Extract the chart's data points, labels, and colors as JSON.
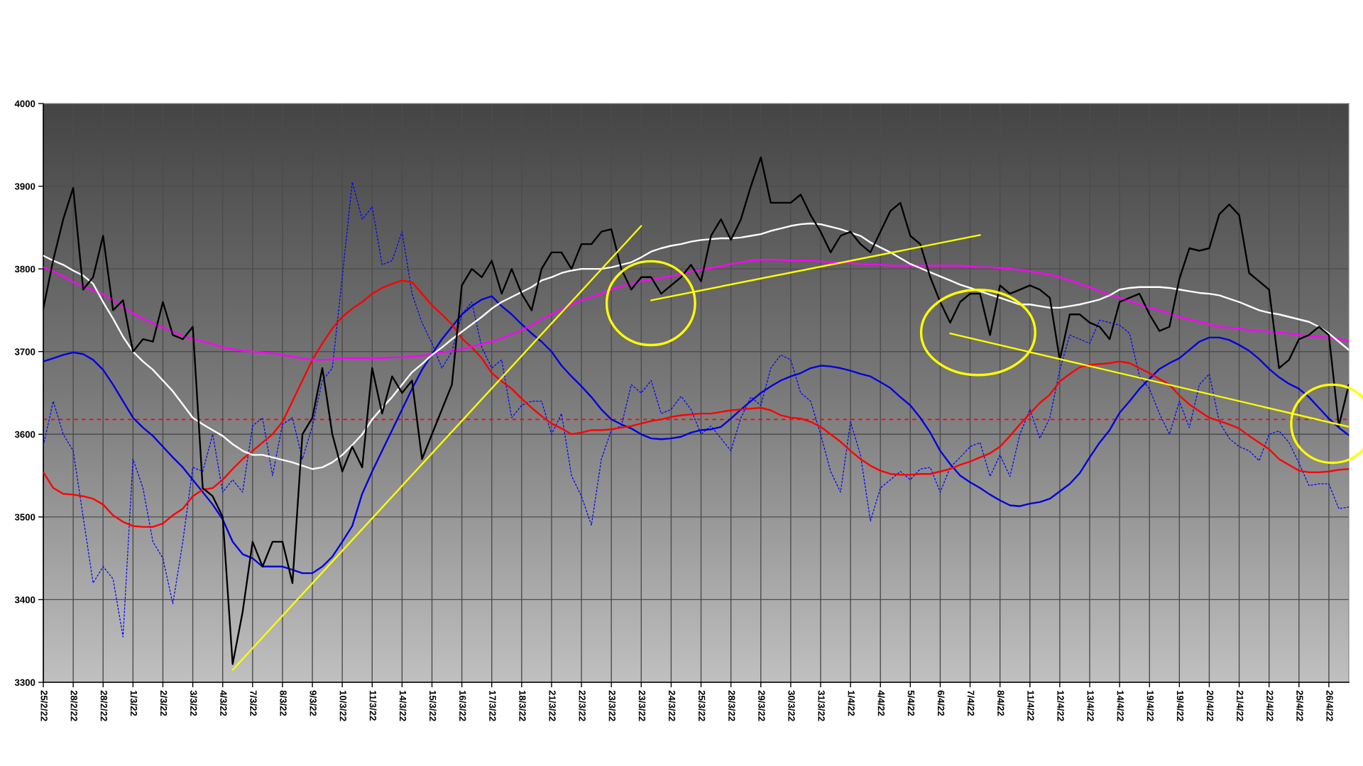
{
  "chart_data": {
    "type": "line",
    "categories": [
      "25/2/22",
      null,
      null,
      "28/2/22",
      null,
      null,
      "28/2/22",
      null,
      null,
      "1/3/22",
      null,
      null,
      "2/3/22",
      null,
      null,
      "3/3/22",
      null,
      null,
      "4/3/22",
      null,
      null,
      "7/3/22",
      null,
      null,
      "8/3/22",
      null,
      null,
      "9/3/22",
      null,
      null,
      "10/3/22",
      null,
      null,
      "11/3/22",
      null,
      null,
      "14/3/22",
      null,
      null,
      "15/3/22",
      null,
      null,
      "16/3/22",
      null,
      null,
      "17/3/22",
      null,
      null,
      "18/3/22",
      null,
      null,
      "21/3/22",
      null,
      null,
      "22/3/22",
      null,
      null,
      "23/3/22",
      null,
      null,
      "23/3/22",
      null,
      null,
      "24/3/22",
      null,
      null,
      "25/3/22",
      null,
      null,
      "28/3/22",
      null,
      null,
      "29/3/22",
      null,
      null,
      "30/3/22",
      null,
      null,
      "31/3/22",
      null,
      null,
      "1/4/22",
      null,
      null,
      "4/4/22",
      null,
      null,
      "5/4/22",
      null,
      null,
      "6/4/22",
      null,
      null,
      "7/4/22",
      null,
      null,
      "8/4/22",
      null,
      null,
      "11/4/22",
      null,
      null,
      "12/4/22",
      null,
      null,
      "13/4/22",
      null,
      null,
      "14/4/22",
      null,
      null,
      "19/4/22",
      null,
      null,
      "19/4/22",
      null,
      null,
      "20/4/22",
      null,
      null,
      "21/4/22",
      null,
      null,
      "22/4/22",
      null,
      null,
      "25/4/22",
      null,
      null,
      "26/4/22",
      null,
      null
    ],
    "series": [
      {
        "color": "#0000ff",
        "line_style": "dotted",
        "values": [
          3586,
          3640,
          3600,
          3580,
          3500,
          3420,
          3440,
          3425,
          3355,
          3570,
          3535,
          3470,
          3450,
          3395,
          3470,
          3560,
          3555,
          3600,
          3530,
          3545,
          3530,
          3610,
          3620,
          3550,
          3612,
          3620,
          3570,
          3610,
          3665,
          3680,
          3790,
          3905,
          3860,
          3875,
          3805,
          3810,
          3845,
          3770,
          3735,
          3710,
          3680,
          3700,
          3745,
          3760,
          3705,
          3680,
          3690,
          3620,
          3635,
          3640,
          3640,
          3600,
          3625,
          3550,
          3525,
          3490,
          3570,
          3605,
          3610,
          3660,
          3650,
          3665,
          3625,
          3630,
          3646,
          3630,
          3600,
          3610,
          3595,
          3580,
          3620,
          3645,
          3635,
          3680,
          3696,
          3690,
          3650,
          3640,
          3600,
          3555,
          3530,
          3615,
          3575,
          3495,
          3535,
          3545,
          3555,
          3545,
          3558,
          3560,
          3530,
          3560,
          3572,
          3585,
          3590,
          3549,
          3575,
          3549,
          3600,
          3630,
          3595,
          3620,
          3678,
          3720,
          3715,
          3710,
          3738,
          3735,
          3732,
          3722,
          3670,
          3655,
          3625,
          3600,
          3640,
          3608,
          3660,
          3673,
          3615,
          3595,
          3585,
          3580,
          3568,
          3600,
          3604,
          3590,
          3565,
          3538,
          3540,
          3540,
          3510,
          3512
        ]
      },
      {
        "color": "#0000dd",
        "values": [
          3688,
          3692,
          3696,
          3699,
          3697,
          3690,
          3678,
          3660,
          3640,
          3620,
          3608,
          3598,
          3585,
          3572,
          3560,
          3545,
          3530,
          3515,
          3497,
          3470,
          3455,
          3450,
          3440,
          3440,
          3440,
          3436,
          3432,
          3432,
          3440,
          3452,
          3470,
          3489,
          3528,
          3555,
          3580,
          3605,
          3630,
          3655,
          3678,
          3697,
          3715,
          3730,
          3745,
          3755,
          3763,
          3767,
          3755,
          3745,
          3733,
          3722,
          3712,
          3700,
          3683,
          3670,
          3658,
          3645,
          3630,
          3618,
          3612,
          3607,
          3600,
          3595,
          3594,
          3595,
          3597,
          3602,
          3605,
          3606,
          3609,
          3619,
          3630,
          3640,
          3650,
          3658,
          3665,
          3670,
          3674,
          3680,
          3683,
          3682,
          3680,
          3677,
          3673,
          3670,
          3663,
          3656,
          3645,
          3635,
          3620,
          3602,
          3580,
          3564,
          3550,
          3542,
          3535,
          3527,
          3520,
          3514,
          3513,
          3516,
          3518,
          3522,
          3531,
          3540,
          3553,
          3572,
          3590,
          3605,
          3626,
          3640,
          3655,
          3667,
          3679,
          3686,
          3692,
          3702,
          3712,
          3717,
          3717,
          3714,
          3708,
          3701,
          3691,
          3679,
          3669,
          3661,
          3655,
          3645,
          3632,
          3619,
          3608,
          3599
        ]
      },
      {
        "color": "#ff0000",
        "values": [
          3554,
          3535,
          3528,
          3527,
          3525,
          3522,
          3515,
          3502,
          3494,
          3489,
          3488,
          3488,
          3492,
          3502,
          3510,
          3525,
          3533,
          3535,
          3545,
          3558,
          3570,
          3580,
          3590,
          3600,
          3615,
          3640,
          3665,
          3690,
          3710,
          3728,
          3742,
          3752,
          3760,
          3770,
          3777,
          3782,
          3786,
          3784,
          3770,
          3756,
          3745,
          3733,
          3716,
          3705,
          3692,
          3674,
          3664,
          3655,
          3643,
          3632,
          3622,
          3613,
          3607,
          3600,
          3602,
          3605,
          3605,
          3606,
          3608,
          3610,
          3613,
          3616,
          3618,
          3621,
          3623,
          3624,
          3625,
          3625,
          3627,
          3629,
          3630,
          3631,
          3632,
          3629,
          3623,
          3620,
          3619,
          3615,
          3609,
          3600,
          3591,
          3580,
          3570,
          3562,
          3556,
          3552,
          3551,
          3551,
          3552,
          3552,
          3555,
          3558,
          3563,
          3567,
          3572,
          3577,
          3585,
          3598,
          3612,
          3625,
          3638,
          3648,
          3664,
          3673,
          3681,
          3684,
          3685,
          3686,
          3688,
          3686,
          3680,
          3674,
          3667,
          3660,
          3647,
          3636,
          3628,
          3620,
          3616,
          3612,
          3607,
          3598,
          3590,
          3582,
          3570,
          3563,
          3556,
          3554,
          3554,
          3555,
          3557,
          3558
        ]
      },
      {
        "color": "#ff00ff",
        "values": [
          3802,
          3797,
          3791,
          3784,
          3779,
          3774,
          3769,
          3762,
          3754,
          3746,
          3740,
          3734,
          3729,
          3724,
          3719,
          3715,
          3712,
          3709,
          3705,
          3703,
          3701,
          3700,
          3699,
          3698,
          3696,
          3694,
          3692,
          3690,
          3690,
          3691,
          3692,
          3692,
          3692,
          3692,
          3692,
          3693,
          3693,
          3694,
          3695,
          3697,
          3699,
          3701,
          3703,
          3706,
          3709,
          3712,
          3716,
          3721,
          3726,
          3732,
          3739,
          3745,
          3751,
          3757,
          3762,
          3766,
          3770,
          3775,
          3779,
          3782,
          3785,
          3787,
          3789,
          3791,
          3794,
          3797,
          3799,
          3801,
          3803,
          3806,
          3808,
          3810,
          3811,
          3811,
          3811,
          3810,
          3810,
          3810,
          3809,
          3808,
          3808,
          3807,
          3806,
          3805,
          3805,
          3804,
          3804,
          3804,
          3804,
          3804,
          3804,
          3804,
          3804,
          3803,
          3802,
          3802,
          3801,
          3800,
          3799,
          3797,
          3795,
          3793,
          3790,
          3786,
          3782,
          3778,
          3773,
          3769,
          3765,
          3761,
          3757,
          3753,
          3750,
          3746,
          3742,
          3739,
          3736,
          3733,
          3730,
          3729,
          3728,
          3726,
          3725,
          3724,
          3723,
          3722,
          3720,
          3719,
          3718,
          3717,
          3715,
          3713
        ]
      },
      {
        "color": "#ffffff",
        "values": [
          3816,
          3810,
          3805,
          3798,
          3792,
          3782,
          3760,
          3740,
          3718,
          3700,
          3688,
          3678,
          3665,
          3652,
          3636,
          3620,
          3612,
          3605,
          3598,
          3588,
          3580,
          3575,
          3575,
          3572,
          3569,
          3566,
          3562,
          3558,
          3560,
          3566,
          3575,
          3587,
          3600,
          3618,
          3632,
          3645,
          3660,
          3675,
          3685,
          3696,
          3705,
          3715,
          3724,
          3733,
          3742,
          3752,
          3760,
          3766,
          3772,
          3778,
          3786,
          3790,
          3795,
          3798,
          3800,
          3800,
          3800,
          3802,
          3805,
          3808,
          3814,
          3821,
          3825,
          3828,
          3830,
          3833,
          3835,
          3836,
          3837,
          3837,
          3838,
          3840,
          3842,
          3846,
          3849,
          3852,
          3854,
          3855,
          3854,
          3851,
          3848,
          3844,
          3840,
          3832,
          3826,
          3820,
          3813,
          3806,
          3801,
          3796,
          3791,
          3786,
          3781,
          3777,
          3773,
          3769,
          3765,
          3761,
          3757,
          3757,
          3755,
          3753,
          3753,
          3755,
          3757,
          3760,
          3763,
          3768,
          3775,
          3777,
          3778,
          3778,
          3778,
          3777,
          3775,
          3773,
          3771,
          3770,
          3768,
          3764,
          3760,
          3755,
          3750,
          3747,
          3745,
          3742,
          3739,
          3736,
          3730,
          3722,
          3712,
          3702
        ]
      },
      {
        "color": "#000000",
        "values": [
          3752,
          3811,
          3860,
          3898,
          3775,
          3790,
          3840,
          3750,
          3762,
          3700,
          3715,
          3712,
          3760,
          3720,
          3715,
          3730,
          3535,
          3525,
          3500,
          3322,
          3385,
          3470,
          3440,
          3470,
          3470,
          3420,
          3600,
          3620,
          3680,
          3600,
          3555,
          3585,
          3560,
          3680,
          3625,
          3670,
          3650,
          3665,
          3570,
          3600,
          3630,
          3660,
          3780,
          3800,
          3790,
          3810,
          3770,
          3800,
          3770,
          3750,
          3800,
          3820,
          3820,
          3800,
          3830,
          3830,
          3845,
          3848,
          3800,
          3775,
          3790,
          3790,
          3770,
          3780,
          3790,
          3805,
          3785,
          3840,
          3860,
          3835,
          3860,
          3900,
          3935,
          3880,
          3880,
          3880,
          3890,
          3865,
          3845,
          3820,
          3840,
          3845,
          3830,
          3820,
          3845,
          3870,
          3880,
          3840,
          3830,
          3790,
          3760,
          3735,
          3760,
          3770,
          3770,
          3720,
          3780,
          3770,
          3775,
          3780,
          3775,
          3765,
          3690,
          3745,
          3745,
          3735,
          3730,
          3715,
          3760,
          3765,
          3770,
          3745,
          3725,
          3730,
          3788,
          3825,
          3822,
          3825,
          3866,
          3878,
          3865,
          3795,
          3785,
          3775,
          3680,
          3690,
          3715,
          3720,
          3730,
          3720,
          3610,
          3660
        ]
      },
      {
        "color": "#ffff00",
        "values": [
          null,
          null,
          null,
          null,
          null,
          null,
          null,
          null,
          null,
          null,
          null,
          null,
          null,
          null,
          null,
          null,
          null,
          null,
          null,
          3315,
          null,
          null,
          null,
          null,
          null,
          null,
          null,
          null,
          null,
          null,
          null,
          null,
          null,
          null,
          null,
          null,
          null,
          null,
          null,
          null,
          null,
          null,
          null,
          null,
          null,
          null,
          null,
          null,
          null,
          null,
          null,
          null,
          null,
          null,
          null,
          null,
          null,
          null,
          null,
          null,
          3852,
          null,
          null,
          null,
          null,
          null,
          null,
          null,
          null,
          null,
          null,
          null,
          null,
          null,
          null,
          null,
          null,
          null,
          null,
          null,
          null,
          null,
          null,
          null,
          null,
          null,
          null,
          null,
          null,
          null,
          null,
          null,
          null,
          null,
          null,
          null,
          null,
          null,
          null,
          null,
          null,
          null,
          null,
          null,
          null,
          null,
          null,
          null,
          null,
          null,
          null,
          null,
          null,
          null,
          null,
          null,
          null,
          null,
          null,
          null,
          null,
          null,
          null,
          null,
          null,
          null,
          null,
          null,
          null,
          null,
          null,
          null
        ]
      },
      {
        "color": "#ffff00",
        "values": [
          null,
          null,
          null,
          null,
          null,
          null,
          null,
          null,
          null,
          null,
          null,
          null,
          null,
          null,
          null,
          null,
          null,
          null,
          null,
          null,
          null,
          null,
          null,
          null,
          null,
          null,
          null,
          null,
          null,
          null,
          null,
          null,
          null,
          null,
          null,
          null,
          null,
          null,
          null,
          null,
          null,
          null,
          null,
          null,
          null,
          null,
          null,
          null,
          null,
          null,
          null,
          null,
          null,
          null,
          null,
          null,
          null,
          null,
          null,
          null,
          null,
          3762,
          null,
          null,
          null,
          null,
          null,
          null,
          null,
          null,
          null,
          null,
          null,
          null,
          null,
          null,
          null,
          null,
          null,
          null,
          null,
          null,
          null,
          null,
          null,
          null,
          null,
          null,
          null,
          null,
          null,
          null,
          null,
          null,
          3841,
          null,
          null,
          null,
          null,
          null,
          null,
          null,
          null,
          null,
          null,
          null,
          null,
          null,
          null,
          null,
          null,
          null,
          null,
          null,
          null,
          null,
          null,
          null,
          null,
          null,
          null,
          null,
          null,
          null,
          null,
          null,
          null,
          null,
          null,
          null,
          null,
          null
        ]
      },
      {
        "color": "#ffff00",
        "values": [
          null,
          null,
          null,
          null,
          null,
          null,
          null,
          null,
          null,
          null,
          null,
          null,
          null,
          null,
          null,
          null,
          null,
          null,
          null,
          null,
          null,
          null,
          null,
          null,
          null,
          null,
          null,
          null,
          null,
          null,
          null,
          null,
          null,
          null,
          null,
          null,
          null,
          null,
          null,
          null,
          null,
          null,
          null,
          null,
          null,
          null,
          null,
          null,
          null,
          null,
          null,
          null,
          null,
          null,
          null,
          null,
          null,
          null,
          null,
          null,
          null,
          null,
          null,
          null,
          null,
          null,
          null,
          null,
          null,
          null,
          null,
          null,
          null,
          null,
          null,
          null,
          null,
          null,
          null,
          null,
          null,
          null,
          null,
          null,
          null,
          null,
          null,
          null,
          null,
          null,
          null,
          3722,
          null,
          null,
          null,
          null,
          null,
          null,
          null,
          null,
          null,
          null,
          null,
          null,
          null,
          null,
          null,
          null,
          null,
          null,
          null,
          null,
          null,
          null,
          null,
          null,
          null,
          null,
          null,
          null,
          null,
          null,
          null,
          null,
          null,
          null,
          null,
          null,
          null,
          null,
          null,
          3609
        ]
      }
    ],
    "ylim": [
      3300,
      4000
    ],
    "yticks": [
      3300,
      3400,
      3500,
      3600,
      3700,
      3800,
      3900,
      4000
    ],
    "grid": true,
    "ref_lines": [
      {
        "axis": "y",
        "value": 3618,
        "color": "#ff0000",
        "line_style": "dashed"
      }
    ]
  }
}
